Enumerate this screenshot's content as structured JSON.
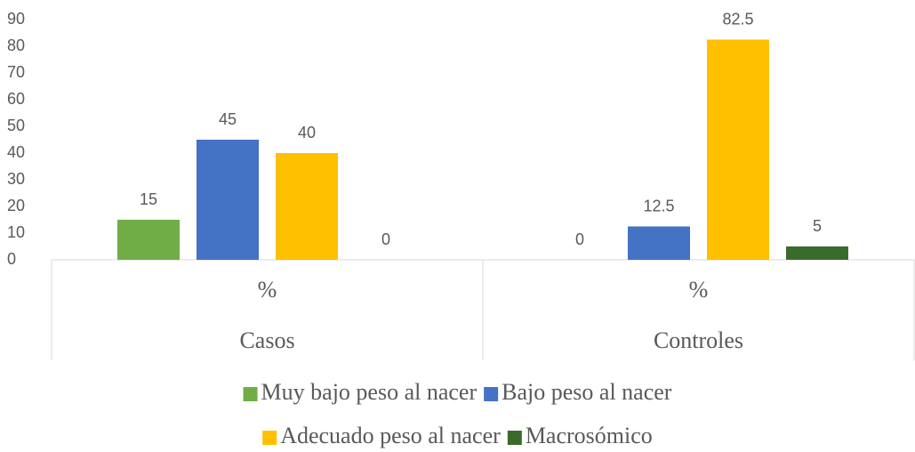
{
  "chart_data": {
    "type": "bar",
    "groups": [
      "Casos",
      "Controles"
    ],
    "categories": [
      "%",
      "%"
    ],
    "series": [
      {
        "name": "Muy bajo peso al nacer",
        "color": "#70ad47",
        "values": [
          15,
          0
        ]
      },
      {
        "name": "Bajo peso al nacer",
        "color": "#4472c4",
        "values": [
          45,
          12.5
        ]
      },
      {
        "name": "Adecuado peso al nacer",
        "color": "#ffc000",
        "values": [
          40,
          82.5
        ]
      },
      {
        "name": "Macrosómico",
        "color": "#3b6b2a",
        "values": [
          0,
          5
        ]
      }
    ],
    "ylim": [
      0,
      90
    ],
    "yticks": [
      0,
      10,
      20,
      30,
      40,
      50,
      60,
      70,
      80,
      90
    ],
    "grid": false,
    "legend": "bottom"
  }
}
